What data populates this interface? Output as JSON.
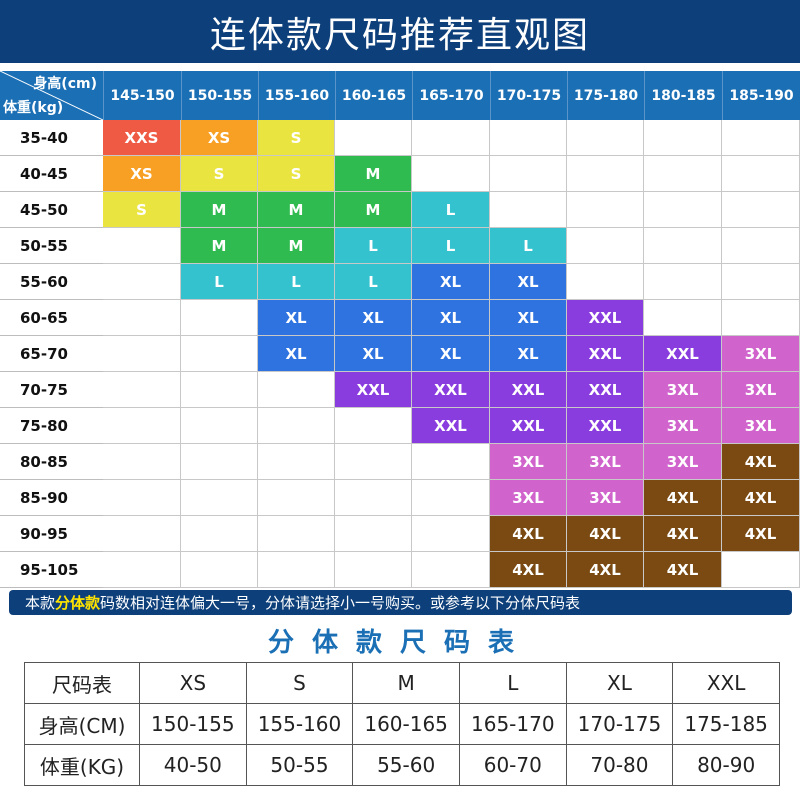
{
  "title": "连体款尺码推荐直观图",
  "corner": {
    "height_label": "身高(cm)",
    "weight_label": "体重(kg)"
  },
  "heights": [
    "145-150",
    "150-155",
    "155-160",
    "160-165",
    "165-170",
    "170-175",
    "175-180",
    "180-185",
    "185-190"
  ],
  "weights": [
    "35-40",
    "40-45",
    "45-50",
    "50-55",
    "55-60",
    "60-65",
    "65-70",
    "70-75",
    "75-80",
    "80-85",
    "85-90",
    "90-95",
    "95-105"
  ],
  "size_colors": {
    "XXS": "#ef5a45",
    "XS": "#f7a024",
    "S": "#eae440",
    "M": "#2fbb4f",
    "L": "#35c2cf",
    "XL": "#2e73e0",
    "XXL": "#8a3ddf",
    "3XL": "#d064cc",
    "4XL": "#7a4a12"
  },
  "size_grid": [
    [
      "XXS",
      "XS",
      "S",
      "",
      "",
      "",
      "",
      "",
      ""
    ],
    [
      "XS",
      "S",
      "S",
      "M",
      "",
      "",
      "",
      "",
      ""
    ],
    [
      "S",
      "M",
      "M",
      "M",
      "L",
      "",
      "",
      "",
      ""
    ],
    [
      "",
      "M",
      "M",
      "L",
      "L",
      "L",
      "",
      "",
      ""
    ],
    [
      "",
      "L",
      "L",
      "L",
      "XL",
      "XL",
      "",
      "",
      ""
    ],
    [
      "",
      "",
      "XL",
      "XL",
      "XL",
      "XL",
      "XXL",
      "",
      ""
    ],
    [
      "",
      "",
      "XL",
      "XL",
      "XL",
      "XL",
      "XXL",
      "XXL",
      "3XL"
    ],
    [
      "",
      "",
      "",
      "XXL",
      "XXL",
      "XXL",
      "XXL",
      "3XL",
      "3XL"
    ],
    [
      "",
      "",
      "",
      "",
      "XXL",
      "XXL",
      "XXL",
      "3XL",
      "3XL"
    ],
    [
      "",
      "",
      "",
      "",
      "",
      "3XL",
      "3XL",
      "3XL",
      "4XL"
    ],
    [
      "",
      "",
      "",
      "",
      "",
      "3XL",
      "3XL",
      "4XL",
      "4XL"
    ],
    [
      "",
      "",
      "",
      "",
      "",
      "4XL",
      "4XL",
      "4XL",
      "4XL"
    ],
    [
      "",
      "",
      "",
      "",
      "",
      "4XL",
      "4XL",
      "4XL",
      ""
    ]
  ],
  "note": {
    "prefix": "本款",
    "highlight": "分体款",
    "suffix": "码数相对连体偏大一号，分体请选择小一号购买。或参考以下分体尺码表"
  },
  "split_title": "分体款尺码表",
  "split_table": {
    "header": [
      "尺码表",
      "XS",
      "S",
      "M",
      "L",
      "XL",
      "XXL"
    ],
    "rows": [
      [
        "身高(CM)",
        "150-155",
        "155-160",
        "160-165",
        "165-170",
        "170-175",
        "175-185"
      ],
      [
        "体重(KG)",
        "40-50",
        "50-55",
        "55-60",
        "60-70",
        "70-80",
        "80-90"
      ]
    ]
  }
}
